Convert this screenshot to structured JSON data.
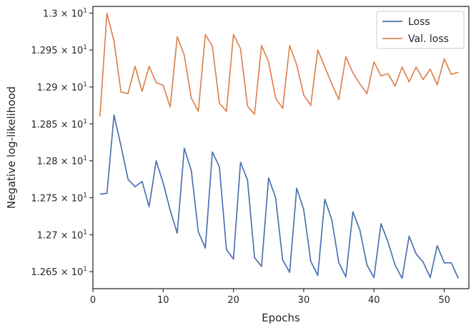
{
  "chart_data": {
    "type": "line",
    "xlabel": "Epochs",
    "ylabel": "Negative log-likelihood",
    "xlim": [
      0,
      53.5
    ],
    "ylim": [
      12.627,
      13.009
    ],
    "x_ticks": [
      0,
      10,
      20,
      30,
      40,
      50
    ],
    "x_tick_labels": [
      "0",
      "10",
      "20",
      "30",
      "40",
      "50"
    ],
    "y_ticks": [
      12.65,
      12.7,
      12.75,
      12.8,
      12.85,
      12.9,
      12.95,
      13.0
    ],
    "y_tick_mantissas": [
      "1.265",
      "1.27",
      "1.275",
      "1.28",
      "1.285",
      "1.29",
      "1.295",
      "1.3"
    ],
    "y_tick_base": "10",
    "y_tick_exponent": "1",
    "grid": false,
    "legend_position": "top-right",
    "x": [
      1,
      2,
      3,
      4,
      5,
      6,
      7,
      8,
      9,
      10,
      11,
      12,
      13,
      14,
      15,
      16,
      17,
      18,
      19,
      20,
      21,
      22,
      23,
      24,
      25,
      26,
      27,
      28,
      29,
      30,
      31,
      32,
      33,
      34,
      35,
      36,
      37,
      38,
      39,
      40,
      41,
      42,
      43,
      44,
      45,
      46,
      47,
      48,
      49,
      50,
      51,
      52
    ],
    "series": [
      {
        "name": "Loss",
        "color": "#4c72b0",
        "values": [
          12.755,
          12.756,
          12.862,
          12.82,
          12.775,
          12.765,
          12.772,
          12.738,
          12.8,
          12.77,
          12.733,
          12.702,
          12.817,
          12.787,
          12.704,
          12.682,
          12.812,
          12.792,
          12.68,
          12.667,
          12.798,
          12.774,
          12.669,
          12.657,
          12.777,
          12.75,
          12.666,
          12.649,
          12.763,
          12.734,
          12.664,
          12.645,
          12.748,
          12.72,
          12.662,
          12.643,
          12.731,
          12.706,
          12.659,
          12.642,
          12.715,
          12.69,
          12.659,
          12.641,
          12.698,
          12.674,
          12.663,
          12.642,
          12.685,
          12.662,
          12.662,
          12.641
        ]
      },
      {
        "name": "Val. loss",
        "color": "#dd8452",
        "values": [
          12.86,
          13.0,
          12.962,
          12.893,
          12.891,
          12.928,
          12.894,
          12.928,
          12.906,
          12.902,
          12.873,
          12.968,
          12.943,
          12.885,
          12.867,
          12.971,
          12.955,
          12.878,
          12.867,
          12.971,
          12.952,
          12.874,
          12.863,
          12.956,
          12.934,
          12.885,
          12.871,
          12.956,
          12.93,
          12.889,
          12.875,
          12.95,
          12.927,
          12.904,
          12.883,
          12.941,
          12.919,
          12.904,
          12.891,
          12.934,
          12.915,
          12.918,
          12.901,
          12.927,
          12.907,
          12.927,
          12.91,
          12.924,
          12.903,
          12.938,
          12.917,
          12.92
        ]
      }
    ]
  }
}
